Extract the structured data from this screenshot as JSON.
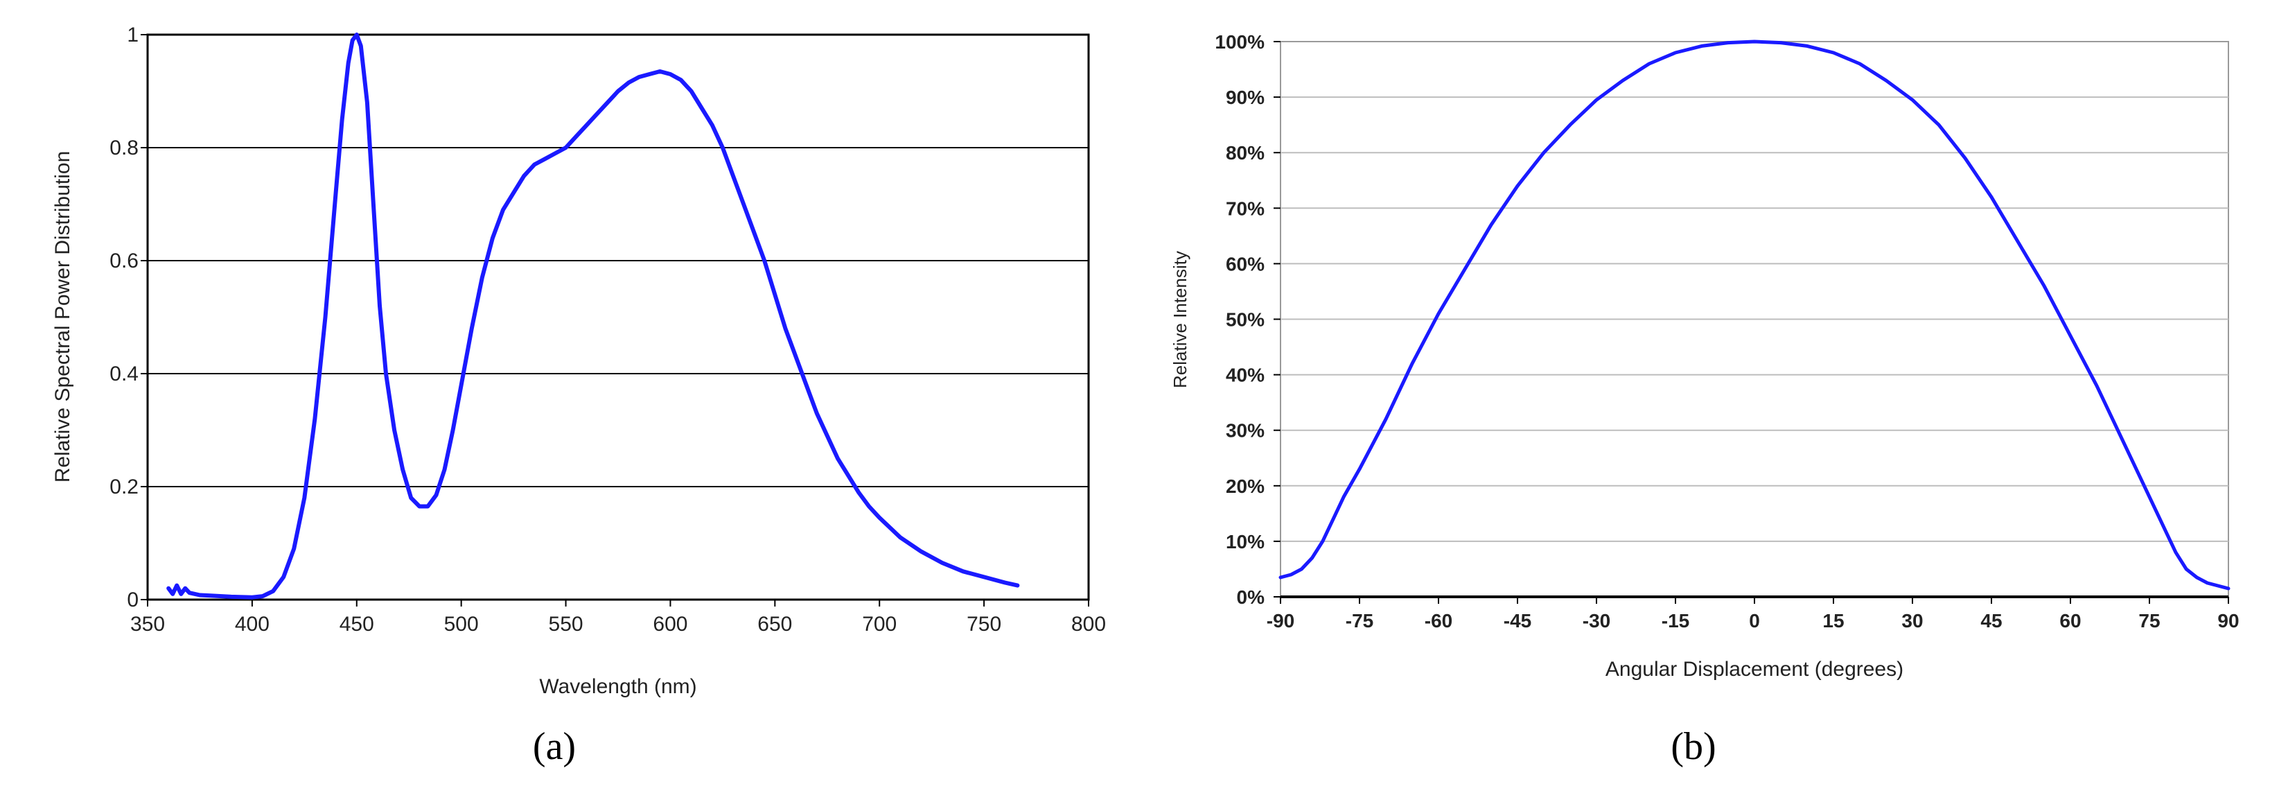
{
  "chart_data": [
    {
      "type": "line",
      "panel_label": "(a)",
      "xlabel": "Wavelength (nm)",
      "ylabel": "Relative Spectral Power Distribution",
      "xlim": [
        350,
        800
      ],
      "ylim": [
        0,
        1
      ],
      "xticks": [
        "350",
        "400",
        "450",
        "500",
        "550",
        "600",
        "650",
        "700",
        "750",
        "800"
      ],
      "yticks": [
        "0",
        "0.2",
        "0.4",
        "0.6",
        "0.8",
        "1"
      ],
      "grid": "horizontal",
      "line_color": "#1a1aff",
      "series": [
        {
          "x": [
            360,
            362,
            364,
            366,
            368,
            370,
            375,
            380,
            390,
            400,
            405,
            410,
            415,
            420,
            425,
            430,
            435,
            440,
            443,
            446,
            448,
            450,
            452,
            455,
            458,
            461,
            464,
            468,
            472,
            476,
            480,
            484,
            488,
            492,
            496,
            500,
            505,
            510,
            515,
            520,
            525,
            530,
            535,
            540,
            545,
            550,
            555,
            560,
            565,
            570,
            575,
            580,
            585,
            590,
            595,
            600,
            605,
            610,
            615,
            620,
            625,
            630,
            635,
            640,
            645,
            650,
            655,
            660,
            665,
            670,
            675,
            680,
            685,
            690,
            695,
            700,
            710,
            720,
            730,
            740,
            750,
            760,
            766
          ],
          "y": [
            0.02,
            0.01,
            0.025,
            0.01,
            0.02,
            0.012,
            0.008,
            0.007,
            0.005,
            0.004,
            0.006,
            0.015,
            0.04,
            0.09,
            0.18,
            0.32,
            0.5,
            0.72,
            0.85,
            0.95,
            0.99,
            1.0,
            0.98,
            0.88,
            0.7,
            0.52,
            0.4,
            0.3,
            0.23,
            0.18,
            0.165,
            0.165,
            0.185,
            0.23,
            0.3,
            0.38,
            0.48,
            0.57,
            0.64,
            0.69,
            0.72,
            0.75,
            0.77,
            0.78,
            0.79,
            0.8,
            0.82,
            0.84,
            0.86,
            0.88,
            0.9,
            0.915,
            0.925,
            0.93,
            0.935,
            0.93,
            0.92,
            0.9,
            0.87,
            0.84,
            0.8,
            0.75,
            0.7,
            0.65,
            0.6,
            0.54,
            0.48,
            0.43,
            0.38,
            0.33,
            0.29,
            0.25,
            0.22,
            0.19,
            0.165,
            0.145,
            0.11,
            0.085,
            0.065,
            0.05,
            0.04,
            0.03,
            0.025
          ]
        }
      ]
    },
    {
      "type": "line",
      "panel_label": "(b)",
      "xlabel": "Angular Displacement (degrees)",
      "ylabel": "Relative Intensity",
      "xlim": [
        -90,
        90
      ],
      "ylim": [
        0,
        100
      ],
      "xticks": [
        "-90",
        "-75",
        "-60",
        "-45",
        "-30",
        "-15",
        "0",
        "15",
        "30",
        "45",
        "60",
        "75",
        "90"
      ],
      "yticks": [
        "0%",
        "10%",
        "20%",
        "30%",
        "40%",
        "50%",
        "60%",
        "70%",
        "80%",
        "90%",
        "100%"
      ],
      "grid": "horizontal",
      "line_color": "#1a1aff",
      "series": [
        {
          "x": [
            -90,
            -88,
            -86,
            -84,
            -82,
            -80,
            -78,
            -75,
            -70,
            -65,
            -60,
            -55,
            -50,
            -45,
            -40,
            -35,
            -30,
            -25,
            -20,
            -15,
            -10,
            -5,
            0,
            5,
            10,
            15,
            20,
            25,
            30,
            35,
            40,
            45,
            50,
            55,
            60,
            65,
            70,
            75,
            78,
            80,
            82,
            84,
            86,
            88,
            90
          ],
          "y": [
            3.5,
            4,
            5,
            7,
            10,
            14,
            18,
            23,
            32,
            42,
            51,
            59,
            67,
            74,
            80,
            85,
            89.5,
            93,
            96,
            98,
            99.2,
            99.8,
            100,
            99.8,
            99.2,
            98,
            96,
            93,
            89.5,
            85,
            79,
            72,
            64,
            56,
            47,
            38,
            28,
            18,
            12,
            8,
            5,
            3.5,
            2.5,
            2,
            1.5
          ]
        }
      ]
    }
  ]
}
